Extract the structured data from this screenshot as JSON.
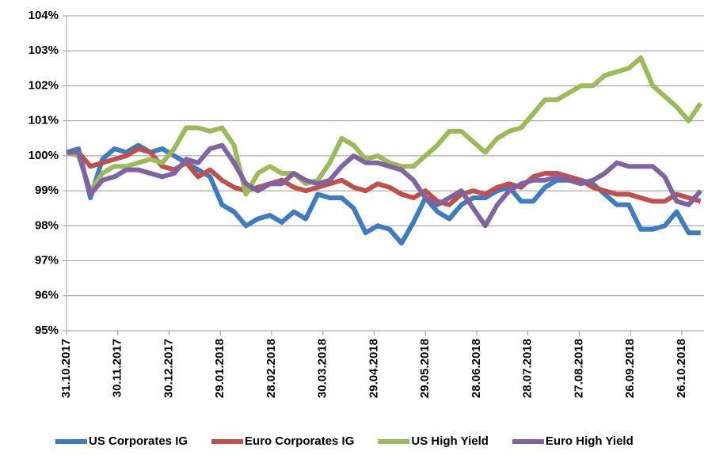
{
  "chart_data": {
    "type": "line",
    "x": [
      "31.10.2017",
      "07.11.2017",
      "14.11.2017",
      "21.11.2017",
      "28.11.2017",
      "05.12.2017",
      "12.12.2017",
      "19.12.2017",
      "26.12.2017",
      "02.01.2018",
      "09.01.2018",
      "16.01.2018",
      "23.01.2018",
      "30.01.2018",
      "06.02.2018",
      "13.02.2018",
      "20.02.2018",
      "27.02.2018",
      "06.03.2018",
      "13.03.2018",
      "20.03.2018",
      "27.03.2018",
      "03.04.2018",
      "10.04.2018",
      "17.04.2018",
      "24.04.2018",
      "01.05.2018",
      "08.05.2018",
      "15.05.2018",
      "22.05.2018",
      "29.05.2018",
      "05.06.2018",
      "12.06.2018",
      "19.06.2018",
      "26.06.2018",
      "03.07.2018",
      "10.07.2018",
      "17.07.2018",
      "24.07.2018",
      "31.07.2018",
      "07.08.2018",
      "14.08.2018",
      "21.08.2018",
      "28.08.2018",
      "04.09.2018",
      "11.09.2018",
      "18.09.2018",
      "25.09.2018",
      "02.10.2018",
      "09.10.2018",
      "16.10.2018",
      "23.10.2018",
      "30.10.2018",
      "06.11.2018"
    ],
    "series": [
      {
        "name": "US Corporates IG",
        "color": "#3d7cc2",
        "values": [
          100.1,
          100.2,
          98.8,
          99.9,
          100.2,
          100.1,
          100.3,
          100.1,
          100.2,
          100.0,
          99.8,
          99.6,
          99.4,
          98.6,
          98.4,
          98.0,
          98.2,
          98.3,
          98.1,
          98.4,
          98.2,
          98.9,
          98.8,
          98.8,
          98.5,
          97.8,
          98.0,
          97.9,
          97.5,
          98.1,
          98.8,
          98.4,
          98.2,
          98.6,
          98.8,
          98.8,
          99.0,
          99.1,
          98.7,
          98.7,
          99.1,
          99.3,
          99.3,
          99.3,
          99.2,
          98.9,
          98.6,
          98.6,
          97.9,
          97.9,
          98.0,
          98.4,
          97.8,
          97.8
        ]
      },
      {
        "name": "Euro Corporates IG",
        "color": "#c0504d",
        "values": [
          100.1,
          100.1,
          99.7,
          99.8,
          99.9,
          100.0,
          100.2,
          100.1,
          99.7,
          99.6,
          99.8,
          99.4,
          99.6,
          99.3,
          99.1,
          99.0,
          99.1,
          99.2,
          99.3,
          99.1,
          99.0,
          99.1,
          99.2,
          99.3,
          99.1,
          99.0,
          99.2,
          99.1,
          98.9,
          98.8,
          99.0,
          98.7,
          98.6,
          98.9,
          99.0,
          98.9,
          99.1,
          99.2,
          99.1,
          99.4,
          99.5,
          99.5,
          99.4,
          99.3,
          99.1,
          99.0,
          98.9,
          98.9,
          98.8,
          98.7,
          98.7,
          98.9,
          98.8,
          98.7
        ]
      },
      {
        "name": "US High Yield",
        "color": "#9bbb59",
        "values": [
          100.1,
          100.0,
          99.0,
          99.5,
          99.7,
          99.7,
          99.8,
          99.9,
          99.8,
          100.2,
          100.8,
          100.8,
          100.7,
          100.8,
          100.3,
          98.9,
          99.5,
          99.7,
          99.5,
          99.5,
          99.2,
          99.3,
          99.8,
          100.5,
          100.3,
          99.9,
          100.0,
          99.8,
          99.7,
          99.7,
          100.0,
          100.3,
          100.7,
          100.7,
          100.4,
          100.1,
          100.5,
          100.7,
          100.8,
          101.2,
          101.6,
          101.6,
          101.8,
          102.0,
          102.0,
          102.3,
          102.4,
          102.5,
          102.8,
          102.0,
          101.7,
          101.4,
          101.0,
          101.5
        ]
      },
      {
        "name": "Euro High Yield",
        "color": "#8064a2",
        "values": [
          100.1,
          100.1,
          98.9,
          99.3,
          99.4,
          99.6,
          99.6,
          99.5,
          99.4,
          99.5,
          99.9,
          99.8,
          100.2,
          100.3,
          99.8,
          99.2,
          99.0,
          99.2,
          99.2,
          99.5,
          99.3,
          99.2,
          99.3,
          99.7,
          100.0,
          99.8,
          99.8,
          99.7,
          99.6,
          99.3,
          98.8,
          98.6,
          98.8,
          99.0,
          98.5,
          98.0,
          98.6,
          99.0,
          99.2,
          99.3,
          99.3,
          99.4,
          99.3,
          99.2,
          99.3,
          99.5,
          99.8,
          99.7,
          99.7,
          99.7,
          99.4,
          98.7,
          98.6,
          99.0
        ]
      }
    ],
    "xlim": [
      "31.10.2017",
      "08.11.2018"
    ],
    "xticks": [
      "31.10.2017",
      "30.11.2017",
      "30.12.2017",
      "29.01.2018",
      "28.02.2018",
      "30.03.2018",
      "29.04.2018",
      "29.05.2018",
      "28.06.2018",
      "28.07.2018",
      "27.08.2018",
      "26.09.2018",
      "26.10.2018"
    ],
    "ylim": [
      95,
      104
    ],
    "yticks": [
      {
        "value": 95,
        "label": "95%"
      },
      {
        "value": 96,
        "label": "96%"
      },
      {
        "value": 97,
        "label": "97%"
      },
      {
        "value": 98,
        "label": "98%"
      },
      {
        "value": 99,
        "label": "99%"
      },
      {
        "value": 100,
        "label": "100%"
      },
      {
        "value": 101,
        "label": "101%"
      },
      {
        "value": 102,
        "label": "102%"
      },
      {
        "value": 103,
        "label": "103%"
      },
      {
        "value": 104,
        "label": "104%"
      }
    ],
    "grid": true,
    "legend": "bottom"
  }
}
